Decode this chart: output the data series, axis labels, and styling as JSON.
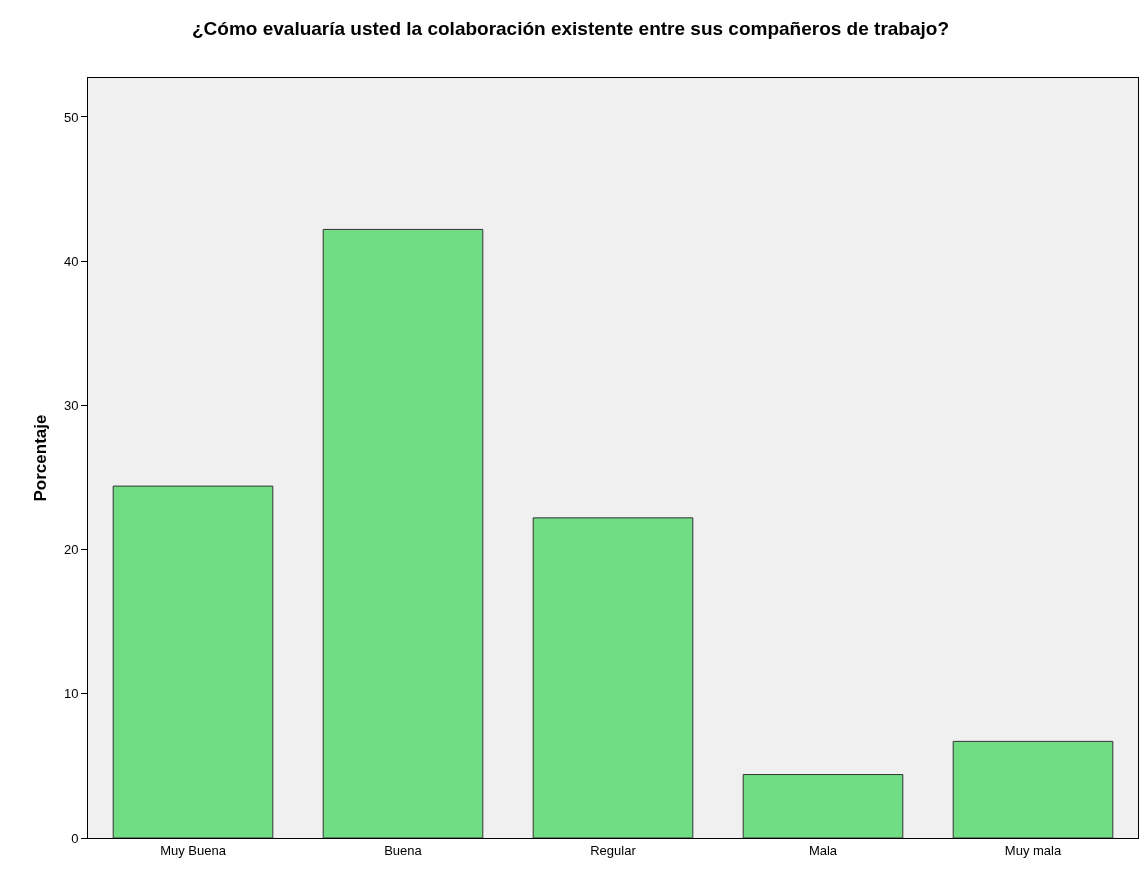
{
  "chart_data": {
    "type": "bar",
    "title": "¿Cómo evaluaría usted la colaboración existente entre sus compañeros de trabajo?",
    "ylabel": "Porcentaje",
    "categories": [
      "Muy Buena",
      "Buena",
      "Regular",
      "Mala",
      "Muy mala"
    ],
    "values": [
      24.4,
      42.2,
      22.2,
      4.4,
      6.7
    ],
    "color": "#70dc84",
    "ylim": [
      0,
      52.7
    ],
    "yticks": [
      0,
      10,
      20,
      30,
      40,
      50
    ],
    "grid": false
  }
}
